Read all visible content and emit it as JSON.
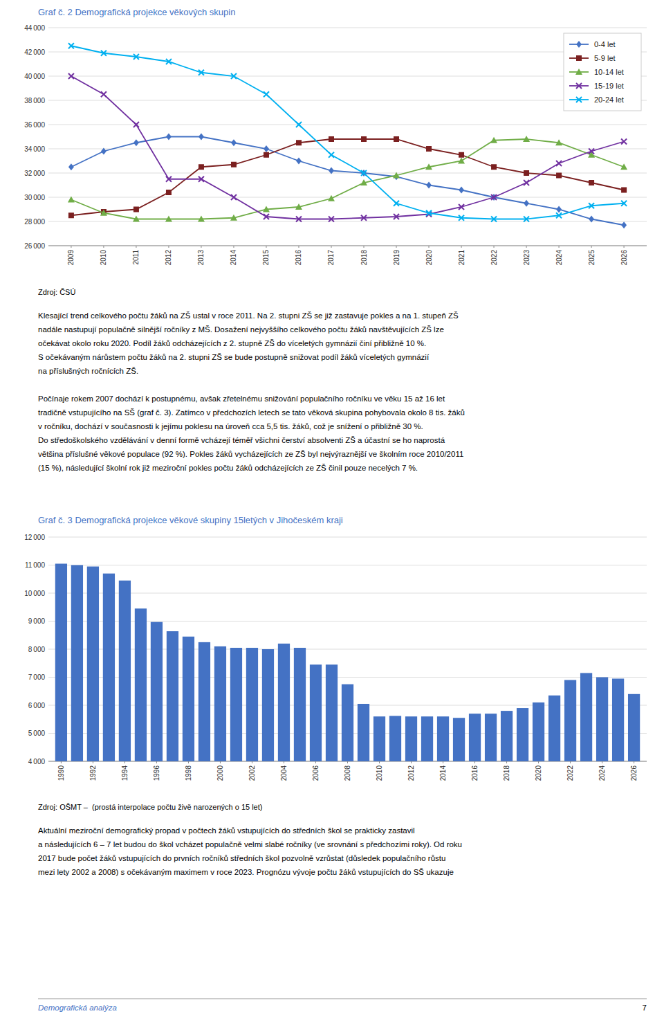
{
  "chart_data": [
    {
      "type": "line",
      "title": "Graf č. 2 Demografická projekce věkových skupin",
      "x": [
        2009,
        2010,
        2011,
        2012,
        2013,
        2014,
        2015,
        2016,
        2017,
        2018,
        2019,
        2020,
        2021,
        2022,
        2023,
        2024,
        2025,
        2026
      ],
      "xlim": [
        2008.3,
        2026.7
      ],
      "xticks": [
        2009,
        2010,
        2011,
        2012,
        2013,
        2014,
        2015,
        2016,
        2017,
        2018,
        2019,
        2020,
        2021,
        2022,
        2023,
        2024,
        2025,
        2026
      ],
      "ylim": [
        26000,
        44000
      ],
      "yticks": [
        {
          "value": 26000,
          "label": "26 000"
        },
        {
          "value": 28000,
          "label": "28 000"
        },
        {
          "value": 30000,
          "label": "30 000"
        },
        {
          "value": 32000,
          "label": "32 000"
        },
        {
          "value": 34000,
          "label": "34 000"
        },
        {
          "value": 36000,
          "label": "36 000"
        },
        {
          "value": 38000,
          "label": "38 000"
        },
        {
          "value": 40000,
          "label": "40 000"
        },
        {
          "value": 42000,
          "label": "42 000"
        },
        {
          "value": 44000,
          "label": "44 000"
        }
      ],
      "grid": true,
      "legend": "upper right",
      "series": [
        {
          "name": "0-4 let",
          "color": "#4472C4",
          "marker": "diamond",
          "values": [
            32500,
            33800,
            34500,
            35000,
            35000,
            34500,
            34000,
            33000,
            32200,
            32000,
            31700,
            31000,
            30600,
            30000,
            29500,
            29000,
            28200,
            27700
          ]
        },
        {
          "name": "5-9 let",
          "color": "#7B2020",
          "marker": "square",
          "values": [
            28500,
            28800,
            29000,
            30400,
            32500,
            32700,
            33500,
            34500,
            34800,
            34800,
            34800,
            34000,
            33500,
            32500,
            32000,
            31800,
            31200,
            30600
          ]
        },
        {
          "name": "10-14 let",
          "color": "#70AD47",
          "marker": "triangle",
          "values": [
            29800,
            28700,
            28200,
            28200,
            28200,
            28300,
            29000,
            29200,
            29900,
            31200,
            31800,
            32500,
            33000,
            34700,
            34800,
            34500,
            33500,
            32500
          ]
        },
        {
          "name": "15-19 let",
          "color": "#7030A0",
          "marker": "x",
          "values": [
            40000,
            38500,
            36000,
            31500,
            31500,
            30000,
            28400,
            28200,
            28200,
            28300,
            28400,
            28600,
            29200,
            30000,
            31200,
            32800,
            33800,
            34600
          ]
        },
        {
          "name": "20-24 let",
          "color": "#00B0F0",
          "marker": "x",
          "values": [
            42500,
            41900,
            41600,
            41200,
            40300,
            40000,
            38500,
            36000,
            33500,
            32000,
            29500,
            28700,
            28300,
            28200,
            28200,
            28500,
            29300,
            29500
          ]
        }
      ],
      "annotations": [
        "Zdroj: ČSÚ",
        "Klesající trend celkového počtu žáků na ZŠ ustal v roce 2011. Na 2. stupni ZŠ se již zastavuje pokles a na 1. stupeň ZŠ",
        "nadále nastupují populačně silnější ročníky z MŠ. Dosažení nejvyššího celkového počtu žáků navštěvujících ZŠ lze",
        "očekávat okolo roku 2020. Podíl žáků odcházejících z 2. stupně ZŠ do víceletých gymnázií činí přibližně 10 %.",
        "S očekávaným nárůstem počtu žáků na 2. stupni ZŠ se bude postupně snižovat podíl žáků víceletých gymnázií",
        "na příslušných ročnících ZŠ.",
        "Počínaje rokem 2007 dochází k postupnému, avšak zřetelnému snižování populačního ročníku ve věku 15 až 16 let",
        "tradičně vstupujícího na SŠ (graf č. 3). Zatímco v předchozích letech se tato věková skupina pohybovala okolo 8 tis. žáků",
        "v ročníku, dochází v současnosti k jejímu poklesu na úroveň cca 5,5 tis. žáků, což je snížení o přibližně 30 %.",
        "Do středoškolského vzdělávání v denní formě vcházejí téměř všichni čerství absolventi ZŠ a účastní se ho naprostá",
        "většina příslušné věkové populace (92 %). Pokles žáků vycházejících ze ZŠ byl nejvýraznější ve školním roce 2010/2011",
        "(15 %), následující školní rok již meziroční pokles počtu žáků odcházejících ze ZŠ činil pouze necelých 7 %."
      ]
    },
    {
      "type": "bar",
      "title": "Graf č. 3 Demografická projekce věkové skupiny 15letých v Jihočeském kraji",
      "x": [
        1990,
        1991,
        1992,
        1993,
        1994,
        1995,
        1996,
        1997,
        1998,
        1999,
        2000,
        2001,
        2002,
        2003,
        2004,
        2005,
        2006,
        2007,
        2008,
        2009,
        2010,
        2011,
        2012,
        2013,
        2014,
        2015,
        2016,
        2017,
        2018,
        2019,
        2020,
        2021,
        2022,
        2023,
        2024,
        2025,
        2026
      ],
      "values": [
        11050,
        11000,
        10950,
        10700,
        10450,
        9450,
        8970,
        8640,
        8450,
        8250,
        8100,
        8050,
        8050,
        8000,
        8200,
        8050,
        7450,
        7450,
        6750,
        6050,
        5600,
        5620,
        5600,
        5600,
        5600,
        5550,
        5700,
        5700,
        5800,
        5900,
        6100,
        6350,
        6900,
        7150,
        7000,
        6950,
        6400
      ],
      "color": "#4472C4",
      "xlim": [
        1989.2,
        2026.8
      ],
      "xticks": [
        1990,
        1992,
        1994,
        1996,
        1998,
        2000,
        2002,
        2004,
        2006,
        2008,
        2010,
        2012,
        2014,
        2016,
        2018,
        2020,
        2022,
        2024,
        2026
      ],
      "ylim": [
        4000,
        12000
      ],
      "yticks": [
        {
          "value": 4000,
          "label": "4 000"
        },
        {
          "value": 5000,
          "label": "5 000"
        },
        {
          "value": 6000,
          "label": "6 000"
        },
        {
          "value": 7000,
          "label": "7 000"
        },
        {
          "value": 8000,
          "label": "8 000"
        },
        {
          "value": 9000,
          "label": "9 000"
        },
        {
          "value": 10000,
          "label": "10 000"
        },
        {
          "value": 11000,
          "label": "11 000"
        },
        {
          "value": 12000,
          "label": "12 000"
        }
      ],
      "grid": true,
      "annotations": [
        "Zdroj: OŠMT –  (prostá interpolace počtu živě narozených o 15 let)",
        "Aktuální meziroční demografický propad v počtech žáků vstupujících do středních škol se prakticky zastavil",
        "a následujících 6 – 7 let budou do škol vcházet populačně velmi slabé ročníky (ve srovnání s předchozími roky). Od roku",
        "2017 bude počet žáků vstupujících do prvních ročníků středních škol pozvolně vzrůstat (důsledek populačního růstu",
        "mezi lety 2002 a 2008) s očekávaným maximem v roce 2023. Prognózu vývoje počtu žáků vstupujících do SŠ ukazuje",
        "Demografická analýza",
        "7"
      ]
    }
  ]
}
